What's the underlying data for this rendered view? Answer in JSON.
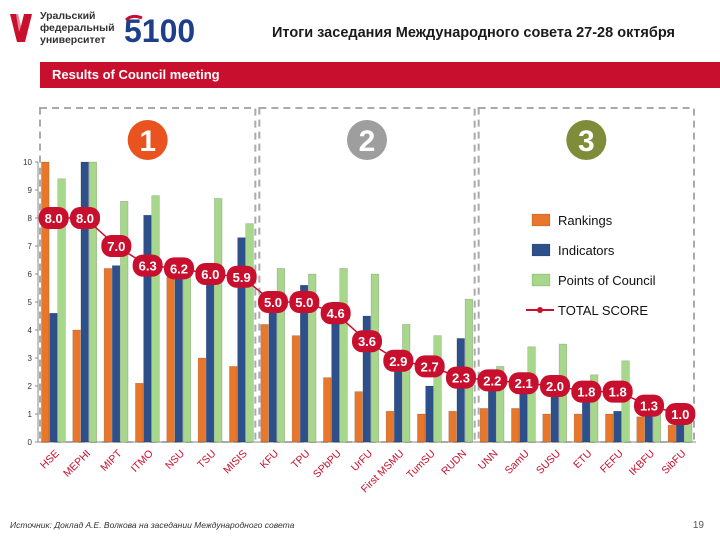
{
  "header": {
    "org_lines": [
      "Уральский",
      "федеральный",
      "университет"
    ],
    "program_logo": "5100",
    "title": "Итоги заседания Международного совета 27-28 октября"
  },
  "banner": {
    "text": "Results of Council meeting"
  },
  "groups": [
    {
      "label": "1",
      "color": "#e8531f"
    },
    {
      "label": "2",
      "color": "#9e9e9e"
    },
    {
      "label": "3",
      "color": "#7f8c3a"
    }
  ],
  "colors": {
    "rankings": "#e8762b",
    "indicators": "#2d4f8a",
    "council": "#a7d78a",
    "total": "#c8102e",
    "banner": "#c8102e",
    "grid": "#dddddd",
    "divider": "#aaaaaa"
  },
  "chart_data": {
    "type": "bar",
    "categories": [
      "HSE",
      "MEPHI",
      "MIPT",
      "ITMO",
      "NSU",
      "TSU",
      "MISIS",
      "KFU",
      "TPU",
      "SPbPU",
      "UrFU",
      "First MSMU",
      "TumSU",
      "RUDN",
      "UNN",
      "SamU",
      "SUSU",
      "ETU",
      "FEFU",
      "IKBFU",
      "SibFU"
    ],
    "ylim": [
      0,
      10
    ],
    "yticks": [
      0,
      1,
      2,
      3,
      4,
      5,
      6,
      7,
      8,
      9,
      10
    ],
    "series": [
      {
        "name": "Rankings",
        "values": [
          10,
          4.0,
          6.2,
          2.1,
          5.9,
          3.0,
          2.7,
          4.2,
          3.8,
          2.3,
          1.8,
          1.1,
          1.0,
          1.1,
          1.2,
          1.2,
          1.0,
          1.0,
          1.0,
          0.9,
          0.6
        ]
      },
      {
        "name": "Indicators",
        "values": [
          4.6,
          10,
          6.3,
          8.1,
          6.1,
          6.0,
          7.3,
          5.0,
          5.6,
          5.0,
          4.5,
          3.0,
          2.0,
          3.7,
          2.2,
          2.0,
          1.9,
          1.7,
          1.1,
          1.0,
          1.0
        ]
      },
      {
        "name": "Points of Council",
        "values": [
          9.4,
          10,
          8.6,
          8.8,
          6.4,
          8.7,
          7.8,
          6.2,
          6.0,
          6.2,
          6.0,
          4.2,
          3.8,
          5.1,
          2.7,
          3.4,
          3.5,
          2.4,
          2.9,
          1.4,
          1.0
        ]
      },
      {
        "name": "TOTAL SCORE",
        "values": [
          8.0,
          8.0,
          7.0,
          6.3,
          6.2,
          6.0,
          5.9,
          5.0,
          5.0,
          4.6,
          3.6,
          2.9,
          2.7,
          2.3,
          2.2,
          2.1,
          2.0,
          1.8,
          1.8,
          1.3,
          1.0
        ]
      }
    ],
    "score_labels": [
      "8.0",
      "8.0",
      "7.0",
      "6.3",
      "6.2",
      "6.0",
      "5.9",
      "5.0",
      "5.0",
      "4.6",
      "3.6",
      "2.9",
      "2.7",
      "2.3",
      "2.2",
      "2.1",
      "2.0",
      "1.8",
      "1.8",
      "1.3",
      "1.0"
    ],
    "legend_position": "right",
    "grid": false
  },
  "footer": {
    "source": "Источник: Доклад А.Е. Волкова на заседании Международного совета",
    "page": "19"
  }
}
